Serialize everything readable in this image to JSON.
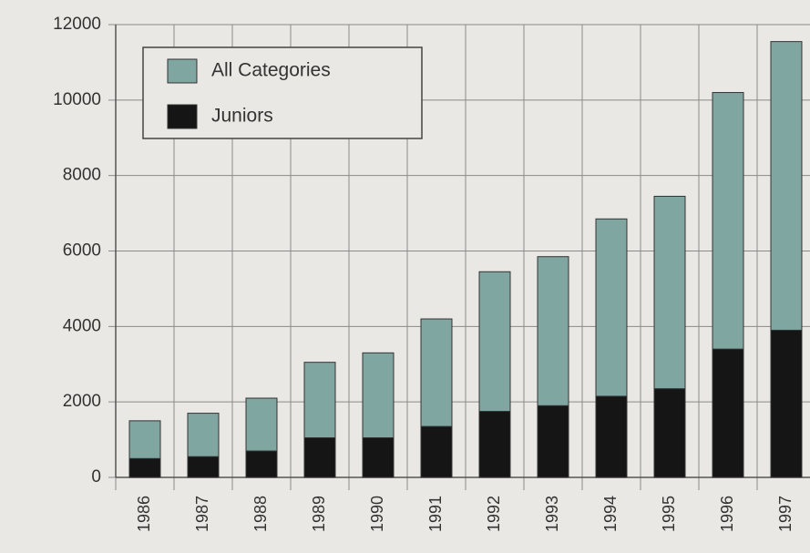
{
  "chart_data": {
    "type": "bar",
    "overlap": true,
    "categories": [
      "1986",
      "1987",
      "1988",
      "1989",
      "1990",
      "1991",
      "1992",
      "1993",
      "1994",
      "1995",
      "1996",
      "1997"
    ],
    "series": [
      {
        "name": "All Categories",
        "color": "#7fa6a0",
        "values": [
          1500,
          1700,
          2100,
          3050,
          3300,
          4200,
          5450,
          5850,
          6850,
          7450,
          10200,
          11550
        ]
      },
      {
        "name": "Juniors",
        "color": "#151515",
        "values": [
          500,
          550,
          700,
          1050,
          1050,
          1350,
          1750,
          1900,
          2150,
          2350,
          3400,
          3900
        ]
      }
    ],
    "ylim": [
      0,
      12000
    ],
    "yticks": [
      0,
      2000,
      4000,
      6000,
      8000,
      10000,
      12000
    ],
    "grid": true,
    "legend": "upper left"
  }
}
